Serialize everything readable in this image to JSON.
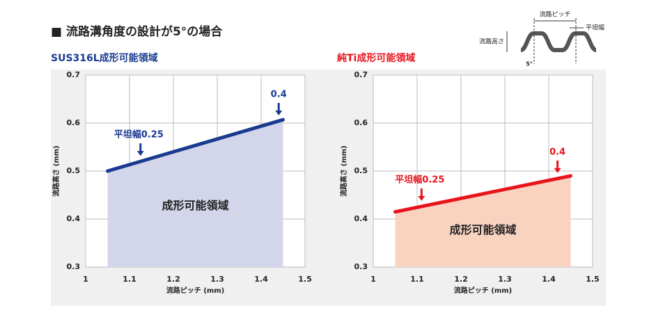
{
  "header": {
    "title": "■ 流路溝角度の設計が5°の場合"
  },
  "diagram": {
    "pitch": "流路ピッチ",
    "flat": "平坦幅",
    "height": "流路高さ",
    "angle": "5°"
  },
  "chart_data": [
    {
      "type": "line",
      "title": "SUS316L成形可能領域",
      "title_color": "#1a3a8f",
      "x_label": "流路ピッチ (mm)",
      "y_label": "流路高さ (mm)",
      "x": [
        1.05,
        1.45
      ],
      "series": [
        {
          "color": "#1a3a8f",
          "values": [
            0.5,
            0.607
          ]
        }
      ],
      "area_color": "#d3d5ea",
      "region_label": "成形可能領域",
      "annotations": [
        {
          "text": "平坦幅0.25",
          "x": 1.125
        },
        {
          "text": "0.4",
          "x": 1.44
        }
      ],
      "xlim": [
        1,
        1.5
      ],
      "xticks": [
        1,
        1.1,
        1.2,
        1.3,
        1.4,
        1.5
      ],
      "ylim": [
        0.3,
        0.7
      ],
      "yticks": [
        0.3,
        0.4,
        0.5,
        0.6,
        0.7
      ],
      "grid": true
    },
    {
      "type": "line",
      "title": "純Ti成形可能領域",
      "title_color": "#e8141c",
      "x_label": "流路ピッチ (mm)",
      "y_label": "流路高さ (mm)",
      "x": [
        1.05,
        1.45
      ],
      "series": [
        {
          "color": "#e8141c",
          "values": [
            0.415,
            0.49
          ]
        }
      ],
      "area_color": "#f9d3c0",
      "region_label": "成形可能領域",
      "annotations": [
        {
          "text": "平坦幅0.25",
          "x": 1.11
        },
        {
          "text": "0.4",
          "x": 1.42
        }
      ],
      "xlim": [
        1,
        1.5
      ],
      "xticks": [
        1,
        1.1,
        1.2,
        1.3,
        1.4,
        1.5
      ],
      "ylim": [
        0.3,
        0.7
      ],
      "yticks": [
        0.3,
        0.4,
        0.5,
        0.6,
        0.7
      ],
      "grid": true
    }
  ]
}
